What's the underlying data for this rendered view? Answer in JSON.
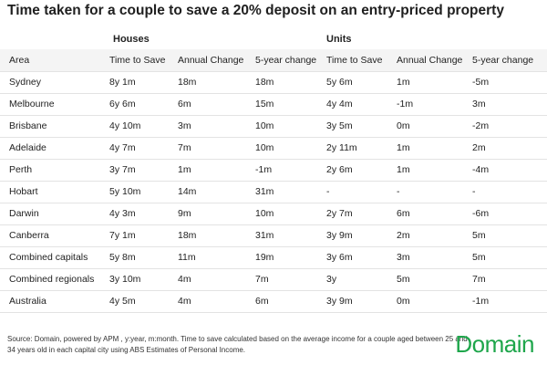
{
  "title": "Time taken for a couple to save a 20% deposit on an entry-priced property",
  "table": {
    "groups": [
      "Houses",
      "Units"
    ],
    "columns": [
      "Area",
      "Time to Save",
      "Annual Change",
      "5-year change",
      "Time to Save",
      "Annual Change",
      "5-year change"
    ],
    "rows": [
      [
        "Sydney",
        "8y 1m",
        "18m",
        "18m",
        "5y 6m",
        "1m",
        "-5m"
      ],
      [
        "Melbourne",
        "6y 6m",
        "6m",
        "15m",
        "4y 4m",
        "-1m",
        "3m"
      ],
      [
        "Brisbane",
        "4y 10m",
        "3m",
        "10m",
        "3y 5m",
        "0m",
        "-2m"
      ],
      [
        "Adelaide",
        "4y 7m",
        "7m",
        "10m",
        "2y 11m",
        "1m",
        "2m"
      ],
      [
        "Perth",
        "3y 7m",
        "1m",
        "-1m",
        "2y 6m",
        "1m",
        "-4m"
      ],
      [
        "Hobart",
        "5y 10m",
        "14m",
        "31m",
        "-",
        "-",
        "-"
      ],
      [
        "Darwin",
        "4y 3m",
        "9m",
        "10m",
        "2y 7m",
        "6m",
        "-6m"
      ],
      [
        "Canberra",
        "7y 1m",
        "18m",
        "31m",
        "3y 9m",
        "2m",
        "5m"
      ],
      [
        "Combined capitals",
        "5y 8m",
        "11m",
        "19m",
        "3y 6m",
        "3m",
        "5m"
      ],
      [
        "Combined regionals",
        "3y 10m",
        "4m",
        "7m",
        "3y",
        "5m",
        "7m"
      ],
      [
        "Australia",
        "4y 5m",
        "4m",
        "6m",
        "3y 9m",
        "0m",
        "-1m"
      ]
    ]
  },
  "source": "Source: Domain, powered by APM , y:year, m:month. Time to save calculated based on the average income for a couple aged between 25 and 34 years old in each capital city using ABS Estimates of Personal Income.",
  "logo": "Domain"
}
